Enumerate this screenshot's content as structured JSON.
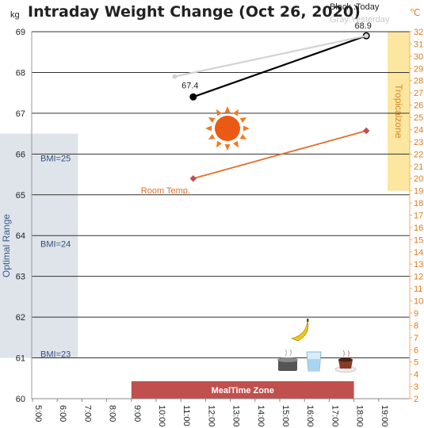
{
  "chart_data": {
    "type": "line",
    "title": "Intraday Weight Change (Oct 26, 2020)",
    "y_unit": "kg",
    "y2_unit": "℃",
    "ylim": [
      60,
      69
    ],
    "y2lim": [
      2,
      32
    ],
    "x_ticks": [
      "5:00",
      "6:00",
      "7:00",
      "8:00",
      "9:00",
      "10:00",
      "11:00",
      "12:00",
      "13:00",
      "14:00",
      "15:00",
      "16:00",
      "17:00",
      "18:00",
      "19:00"
    ],
    "legend": {
      "today": "Black :Today",
      "yesterday": "Gray:Yesterday"
    },
    "series": [
      {
        "name": "Today",
        "color": "#000000",
        "x": [
          "11:30",
          "18:30"
        ],
        "y": [
          67.4,
          68.9
        ],
        "point_labels": [
          "67.4",
          "68.9"
        ]
      },
      {
        "name": "Yesterday",
        "color": "#d3d3d3",
        "x": [
          "10:45",
          "18:30"
        ],
        "y": [
          67.9,
          68.9
        ]
      },
      {
        "name": "Room Temp.",
        "axis": "right",
        "color": "#e0702a",
        "x": [
          "11:30",
          "18:30"
        ],
        "y": [
          20.0,
          23.9
        ]
      }
    ],
    "bands": {
      "optimal_range": {
        "label": "Optimal Range",
        "x_end": "7:00",
        "y": [
          61,
          66.5
        ],
        "color": "#dfe4ea"
      },
      "tropical_zone": {
        "label": "Tropicalzone",
        "y2": [
          19,
          32
        ],
        "color": "#fde7a0"
      },
      "meal_time_zone": {
        "label": "MealTime Zone",
        "x": [
          "9:00",
          "18:00"
        ],
        "color": "#c0504d"
      }
    },
    "bmi_lines": [
      {
        "label": "BMI=25",
        "y": 65.9
      },
      {
        "label": "BMI=24",
        "y": 63.8
      },
      {
        "label": "BMI=23",
        "y": 61.1
      }
    ],
    "grid": true
  },
  "icons": {
    "sun": "sun-icon",
    "banana": "banana-icon",
    "pot": "cooking-pot-icon",
    "water": "water-glass-icon",
    "coffee": "coffee-cup-icon"
  }
}
